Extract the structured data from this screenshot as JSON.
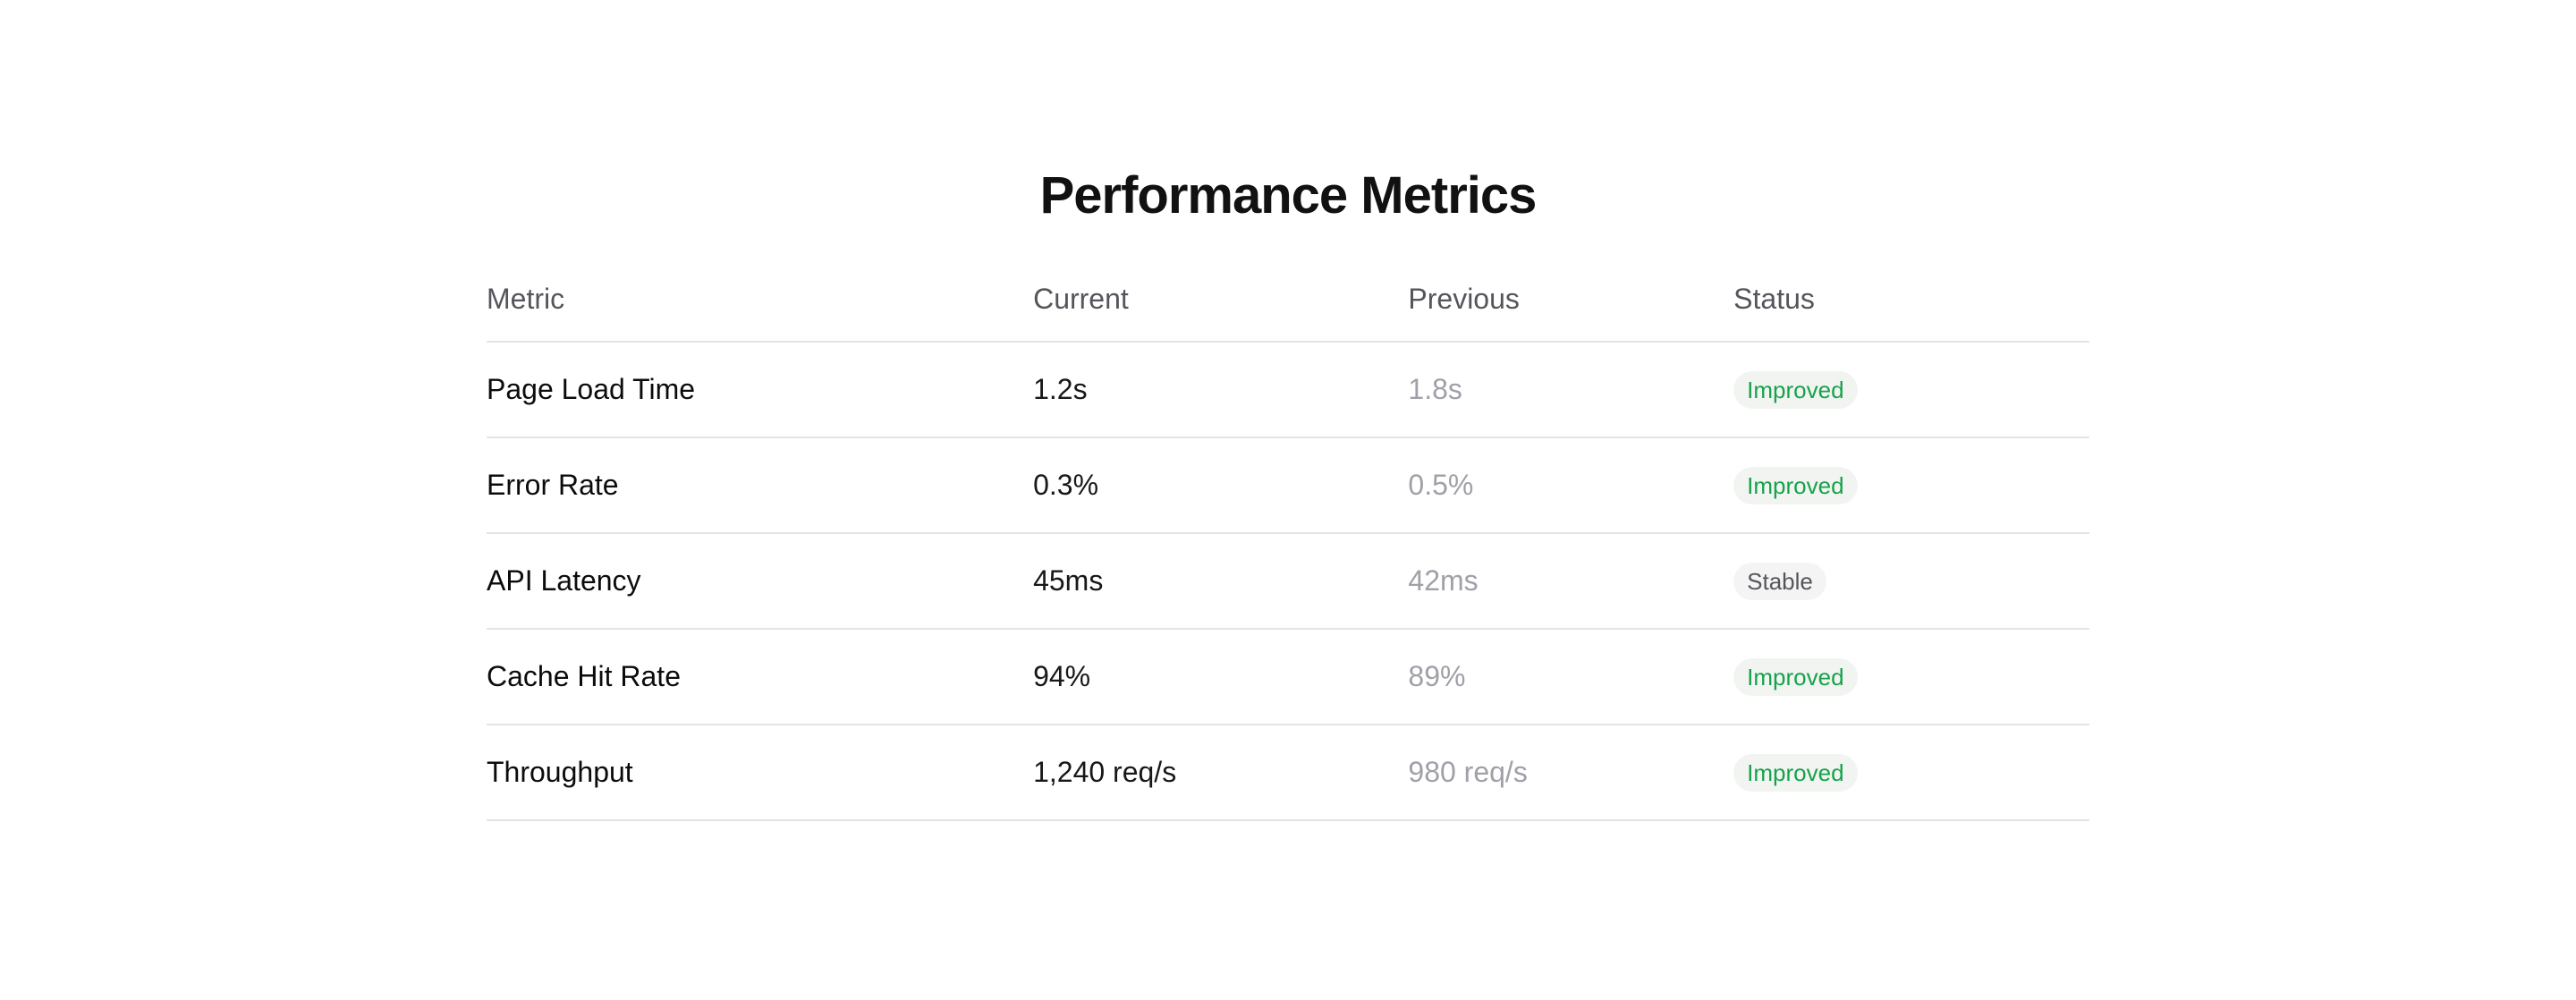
{
  "title": "Performance Metrics",
  "colors": {
    "title_text": "#111111",
    "header_text": "#55555c",
    "metric_text": "#0c0c0e",
    "current_text": "#18181b",
    "previous_text": "#a0a0a8",
    "divider": "#e4e4e7",
    "improved_text": "#16a34a",
    "improved_badge_bg": "#f2f4f2",
    "stable_text": "#55555c",
    "stable_badge_bg": "#f4f4f4"
  },
  "table": {
    "headers": [
      "Metric",
      "Current",
      "Previous",
      "Status"
    ],
    "rows": [
      {
        "metric": "Page Load Time",
        "current": "1.2s",
        "previous": "1.8s",
        "status": {
          "label": "Improved",
          "variant": "improved"
        }
      },
      {
        "metric": "Error Rate",
        "current": "0.3%",
        "previous": "0.5%",
        "status": {
          "label": "Improved",
          "variant": "improved"
        }
      },
      {
        "metric": "API Latency",
        "current": "45ms",
        "previous": "42ms",
        "status": {
          "label": "Stable",
          "variant": "stable"
        }
      },
      {
        "metric": "Cache Hit Rate",
        "current": "94%",
        "previous": "89%",
        "status": {
          "label": "Improved",
          "variant": "improved"
        }
      },
      {
        "metric": "Throughput",
        "current": "1,240 req/s",
        "previous": "980 req/s",
        "status": {
          "label": "Improved",
          "variant": "improved"
        }
      }
    ]
  }
}
